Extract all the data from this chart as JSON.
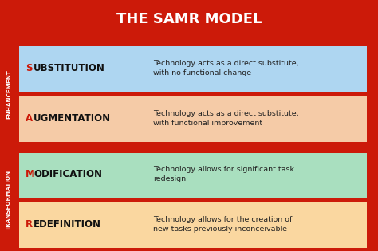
{
  "title": "THE SAMR MODEL",
  "title_color": "#FFFFFF",
  "background_color": "#CC1A09",
  "rows": [
    {
      "label_first_letter": "S",
      "label_rest": "UBSTITUTION",
      "description": "Technology acts as a direct substitute,\nwith no functional change",
      "box_color": "#AED6F1",
      "first_letter_color": "#CC1A09",
      "rest_color": "#111111",
      "desc_color": "#222222"
    },
    {
      "label_first_letter": "A",
      "label_rest": "UGMENTATION",
      "description": "Technology acts as a direct substitute,\nwith functional improvement",
      "box_color": "#F5CBA7",
      "first_letter_color": "#CC1A09",
      "rest_color": "#111111",
      "desc_color": "#222222"
    },
    {
      "label_first_letter": "M",
      "label_rest": "ODIFICATION",
      "description": "Technology allows for significant task\nredesign",
      "box_color": "#A9DFBF",
      "first_letter_color": "#CC1A09",
      "rest_color": "#111111",
      "desc_color": "#222222"
    },
    {
      "label_first_letter": "R",
      "label_rest": "EDEFINITION",
      "description": "Technology allows for the creation of\nnew tasks previously inconceivable",
      "box_color": "#FAD7A0",
      "first_letter_color": "#CC1A09",
      "rest_color": "#111111",
      "desc_color": "#222222"
    }
  ],
  "side_labels": [
    {
      "text": "ENHANCEMENT",
      "rows": [
        0,
        1
      ],
      "color": "#FFFFFF"
    },
    {
      "text": "TRANSFORMATION",
      "rows": [
        2,
        3
      ],
      "color": "#FFFFFF"
    }
  ],
  "title_fontsize": 13,
  "label_fontsize": 8.5,
  "desc_fontsize": 6.8,
  "side_fontsize": 5.2
}
